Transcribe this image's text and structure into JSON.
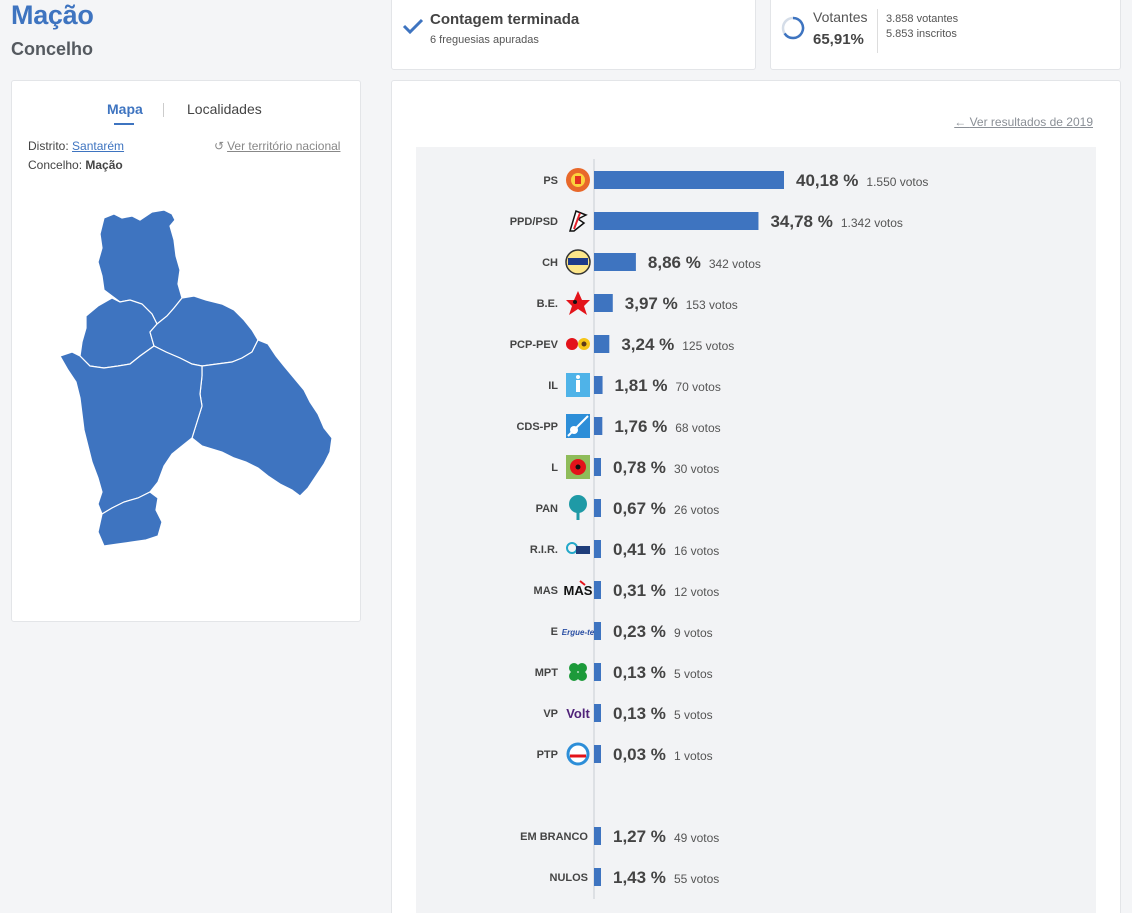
{
  "header": {
    "title": "Mação",
    "subtitle": "Concelho"
  },
  "status": {
    "title": "Contagem terminada",
    "subtitle": "6 freguesias apuradas"
  },
  "voters": {
    "label": "Votantes",
    "percent": "65,91%",
    "count": "3.858 votantes",
    "registered": "5.853 inscritos"
  },
  "map_panel": {
    "tab_map": "Mapa",
    "tab_localities": "Localidades",
    "district_label": "Distrito:",
    "district_value": "Santarém",
    "municipality_label": "Concelho:",
    "municipality_value": "Mação",
    "national_link": "Ver território nacional"
  },
  "results_link": "Ver resultados de 2019",
  "colors": {
    "accent": "#3e74c0",
    "bar": "#3e74c0",
    "map_fill": "#3e74c0"
  },
  "chart_data": {
    "type": "bar",
    "orientation": "horizontal",
    "categories": [
      "PS",
      "PPD/PSD",
      "CH",
      "B.E.",
      "PCP-PEV",
      "IL",
      "CDS-PP",
      "L",
      "PAN",
      "R.I.R.",
      "MAS",
      "E",
      "MPT",
      "VP",
      "PTP",
      "EM BRANCO",
      "NULOS"
    ],
    "values": [
      40.18,
      34.78,
      8.86,
      3.97,
      3.24,
      1.81,
      1.76,
      0.78,
      0.67,
      0.41,
      0.31,
      0.23,
      0.13,
      0.13,
      0.03,
      1.27,
      1.43
    ],
    "value_labels": [
      "40,18 %",
      "34,78 %",
      "8,86 %",
      "3,97 %",
      "3,24 %",
      "1,81 %",
      "1,76 %",
      "0,78 %",
      "0,67 %",
      "0,41 %",
      "0,31 %",
      "0,23 %",
      "0,13 %",
      "0,13 %",
      "0,03 %",
      "1,27 %",
      "1,43 %"
    ],
    "votes_labels": [
      "1.550 votos",
      "1.342 votos",
      "342 votos",
      "153 votos",
      "125 votos",
      "70 votos",
      "68 votos",
      "30 votos",
      "26 votos",
      "16 votos",
      "12 votos",
      "9 votos",
      "5 votos",
      "5 votos",
      "1 votos",
      "49 votos",
      "55 votos"
    ],
    "logos": [
      "ps-logo",
      "psd-logo",
      "chega-logo",
      "be-logo",
      "pcp-pev-logo",
      "il-logo",
      "cds-pp-logo",
      "livre-logo",
      "pan-logo",
      "rir-logo",
      "mas-logo",
      "ergue-te-logo",
      "mpt-logo",
      "volt-logo",
      "ptp-logo",
      "",
      ""
    ]
  }
}
